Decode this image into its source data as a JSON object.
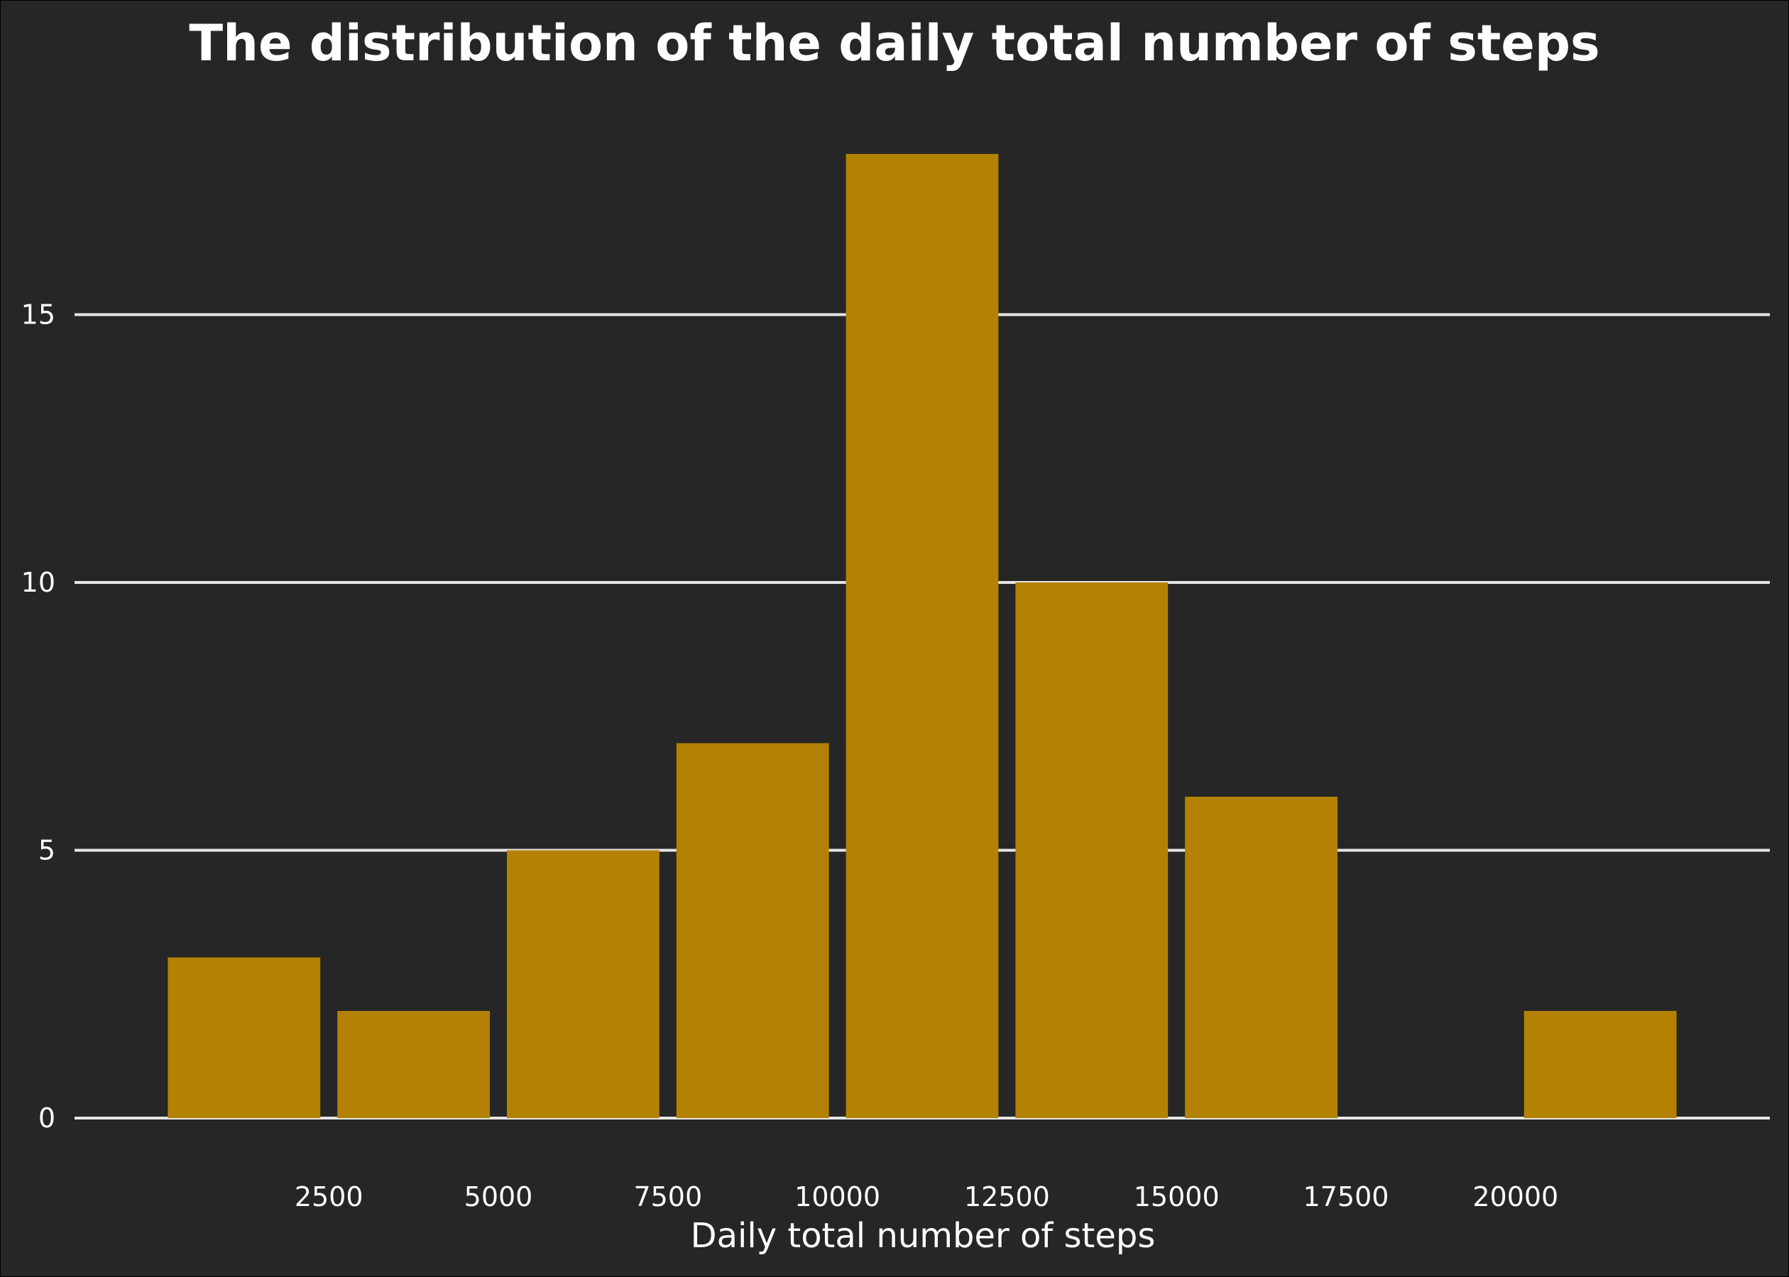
{
  "chart_data": {
    "type": "bar",
    "title": "The distribution of the daily total number of steps",
    "xlabel": "Daily total number of steps",
    "ylabel": "",
    "bins": [
      {
        "start": 0,
        "end": 2500,
        "count": 3
      },
      {
        "start": 2500,
        "end": 5000,
        "count": 2
      },
      {
        "start": 5000,
        "end": 7500,
        "count": 5
      },
      {
        "start": 7500,
        "end": 10000,
        "count": 7
      },
      {
        "start": 10000,
        "end": 12500,
        "count": 18
      },
      {
        "start": 12500,
        "end": 15000,
        "count": 10
      },
      {
        "start": 15000,
        "end": 17500,
        "count": 6
      },
      {
        "start": 17500,
        "end": 20000,
        "count": 0
      },
      {
        "start": 20000,
        "end": 22500,
        "count": 2
      }
    ],
    "x_ticks": [
      2500,
      5000,
      7500,
      10000,
      12500,
      15000,
      17500,
      20000
    ],
    "y_ticks": [
      0,
      5,
      10,
      15
    ],
    "xlim": [
      -1250,
      23750
    ],
    "ylim": [
      0,
      18
    ],
    "grid": "horizontal",
    "bar_color": "#b38204",
    "background_color": "#262626",
    "text_color": "#ffffff"
  }
}
